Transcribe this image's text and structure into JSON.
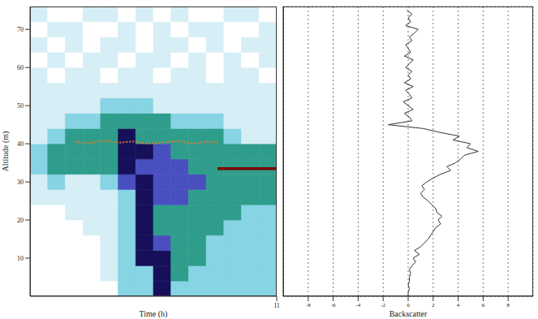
{
  "chart_data": [
    {
      "type": "heatmap",
      "xlabel": "Time (h)",
      "ylabel": "Altitude (m)",
      "xlim": [
        10,
        11
      ],
      "xticks": [
        11
      ],
      "ylim": [
        0,
        76
      ],
      "yticks": [
        10,
        20,
        30,
        40,
        50,
        60,
        70
      ],
      "grid": false,
      "cell_colors": [
        "#ffffff",
        "#d6eef5",
        "#86d4e4",
        "#2f9d8b",
        "#4a4fc0",
        "#16105a"
      ],
      "cells": [
        [
          0,
          0,
          0,
          0,
          0,
          2,
          2,
          5,
          2,
          2,
          2,
          2,
          2,
          2
        ],
        [
          0,
          0,
          0,
          0,
          1,
          2,
          2,
          5,
          3,
          2,
          2,
          2,
          2,
          2
        ],
        [
          0,
          0,
          0,
          0,
          1,
          2,
          5,
          5,
          3,
          3,
          2,
          2,
          2,
          2
        ],
        [
          0,
          0,
          0,
          0,
          1,
          2,
          5,
          4,
          3,
          3,
          2,
          2,
          2,
          2
        ],
        [
          0,
          0,
          0,
          1,
          1,
          2,
          5,
          3,
          3,
          3,
          3,
          2,
          2,
          2
        ],
        [
          0,
          0,
          1,
          1,
          1,
          2,
          5,
          3,
          3,
          3,
          3,
          3,
          2,
          2
        ],
        [
          1,
          1,
          1,
          1,
          1,
          2,
          5,
          4,
          4,
          3,
          3,
          3,
          3,
          3
        ],
        [
          1,
          2,
          1,
          1,
          2,
          4,
          5,
          4,
          4,
          4,
          3,
          3,
          3,
          3
        ],
        [
          2,
          3,
          3,
          3,
          3,
          5,
          4,
          4,
          4,
          3,
          3,
          3,
          3,
          3
        ],
        [
          2,
          3,
          3,
          3,
          3,
          5,
          5,
          4,
          3,
          3,
          3,
          3,
          3,
          3
        ],
        [
          1,
          2,
          3,
          3,
          3,
          5,
          3,
          3,
          3,
          3,
          3,
          2,
          1,
          1
        ],
        [
          1,
          1,
          2,
          2,
          3,
          3,
          3,
          3,
          2,
          2,
          2,
          1,
          1,
          1
        ],
        [
          1,
          1,
          1,
          1,
          2,
          2,
          2,
          1,
          1,
          1,
          1,
          1,
          1,
          1
        ],
        [
          1,
          1,
          1,
          1,
          1,
          1,
          1,
          1,
          1,
          1,
          1,
          1,
          1,
          1
        ],
        [
          1,
          0,
          1,
          1,
          0,
          1,
          1,
          0,
          1,
          1,
          0,
          1,
          1,
          0
        ],
        [
          0,
          1,
          0,
          1,
          1,
          0,
          1,
          1,
          0,
          1,
          0,
          1,
          0,
          1
        ],
        [
          1,
          0,
          1,
          0,
          1,
          1,
          0,
          1,
          1,
          0,
          1,
          0,
          1,
          1
        ],
        [
          0,
          1,
          1,
          0,
          0,
          1,
          0,
          1,
          0,
          1,
          1,
          0,
          0,
          1
        ],
        [
          1,
          0,
          0,
          1,
          1,
          0,
          1,
          0,
          1,
          0,
          0,
          1,
          1,
          0
        ]
      ],
      "series": [
        {
          "color": "#e07a2e",
          "line_style": "dotted",
          "x": [
            10.18,
            10.24,
            10.3,
            10.36,
            10.42,
            10.48,
            10.54,
            10.6,
            10.66,
            10.72,
            10.76
          ],
          "y": [
            40.5,
            40.2,
            40.8,
            40.3,
            40.6,
            40.0,
            40.4,
            40.7,
            40.1,
            40.5,
            40.3
          ]
        },
        {
          "color": "#7a0000",
          "line_style": "solid",
          "x": [
            10.76,
            11.0
          ],
          "y": [
            33.5,
            33.5
          ]
        }
      ]
    },
    {
      "type": "line",
      "xlabel": "Backscatter",
      "xlim": [
        -10,
        10
      ],
      "xticks": [
        -8,
        -6,
        -4,
        -2,
        0,
        2,
        4,
        6,
        8
      ],
      "ylim": [
        0,
        76
      ],
      "yticks": [
        10,
        20,
        30,
        40,
        50,
        60,
        70
      ],
      "grid": true,
      "tick_labels": "x",
      "series": [
        {
          "color": "#333333",
          "line_style": "solid",
          "x": [
            0.0,
            0.0,
            0.1,
            0.0,
            0.1,
            0.1,
            0.2,
            0.1,
            0.3,
            0.6,
            0.4,
            0.9,
            0.5,
            1.0,
            1.3,
            1.6,
            1.8,
            2.0,
            2.2,
            2.6,
            2.4,
            2.7,
            2.3,
            2.2,
            1.9,
            1.6,
            1.2,
            1.0,
            1.3,
            1.1,
            1.5,
            2.0,
            2.6,
            3.4,
            3.1,
            3.8,
            4.2,
            4.5,
            5.6,
            4.7,
            5.0,
            3.6,
            4.1,
            2.5,
            1.2,
            -1.6,
            0.3,
            0.1,
            -0.3,
            0.4,
            0.0,
            -0.4,
            0.3,
            0.1,
            -0.2,
            0.4,
            -0.3,
            0.2,
            0.0,
            0.3,
            -0.2,
            0.1,
            0.4,
            -0.3,
            0.2,
            0.0,
            -0.2,
            0.3,
            0.1,
            0.5,
            0.8,
            -0.2,
            0.2,
            0.0,
            0.3,
            -0.1
          ],
          "y": [
            0,
            1,
            2,
            3,
            4,
            5,
            6,
            7,
            8,
            9,
            10,
            11,
            12,
            13,
            14,
            15,
            16,
            17,
            18,
            19,
            20,
            21,
            22,
            23,
            24,
            25,
            26,
            27,
            28,
            29,
            30,
            31,
            32,
            33,
            34,
            35,
            36,
            37,
            38,
            39,
            40,
            41,
            42,
            43,
            44,
            45,
            46,
            47,
            48,
            49,
            50,
            51,
            52,
            53,
            54,
            55,
            56,
            57,
            58,
            59,
            60,
            61,
            62,
            63,
            64,
            65,
            66,
            67,
            68,
            69,
            70,
            71,
            72,
            73,
            74,
            75
          ]
        }
      ]
    }
  ]
}
